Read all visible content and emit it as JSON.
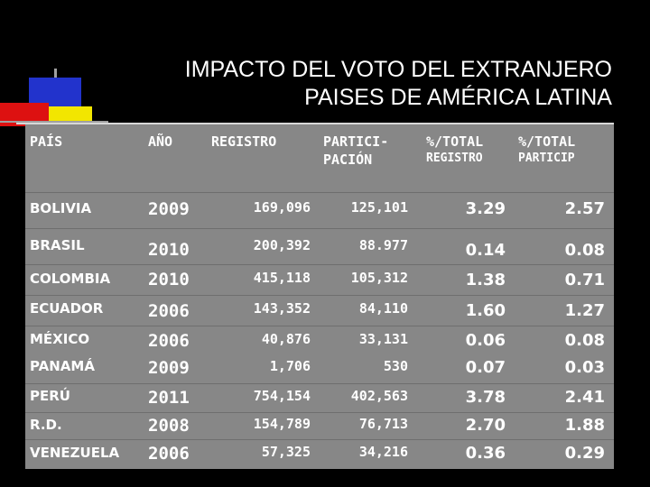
{
  "title": {
    "line1": "IMPACTO DEL VOTO DEL EXTRANJERO",
    "line2": "PAISES DE AMÉRICA LATINA"
  },
  "table": {
    "headers": {
      "country": "PAÍS",
      "year": "AÑO",
      "registro": "REGISTRO",
      "participacion_1": "PARTICI-",
      "participacion_2": "PACIÓN",
      "pct_registro_1": "%/TOTAL",
      "pct_registro_2": "REGISTRO",
      "pct_particip_1": "%/TOTAL",
      "pct_particip_2": "PARTICIP"
    },
    "rows": [
      {
        "country": "BOLIVIA",
        "year": "2009",
        "registro": "169,096",
        "participacion": "125,101",
        "pct_registro": "3.29",
        "pct_particip": "2.57"
      },
      {
        "country": "BRASIL",
        "year": "2010",
        "registro": "200,392",
        "participacion": "88.977",
        "pct_registro": "0.14",
        "pct_particip": "0.08"
      },
      {
        "country": "COLOMBIA",
        "year": "2010",
        "registro": "415,118",
        "participacion": "105,312",
        "pct_registro": "1.38",
        "pct_particip": "0.71"
      },
      {
        "country": "ECUADOR",
        "year": "2006",
        "registro": "143,352",
        "participacion": "84,110",
        "pct_registro": "1.60",
        "pct_particip": "1.27"
      },
      {
        "country": "MÉXICO",
        "year": "2006",
        "registro": "40,876",
        "participacion": "33,131",
        "pct_registro": "0.06",
        "pct_particip": "0.08"
      },
      {
        "country": "PANAMÁ",
        "year": "2009",
        "registro": "1,706",
        "participacion": "530",
        "pct_registro": "0.07",
        "pct_particip": "0.03"
      },
      {
        "country": "PERÚ",
        "year": "2011",
        "registro": "754,154",
        "participacion": "402,563",
        "pct_registro": "3.78",
        "pct_particip": "2.41"
      },
      {
        "country": "R.D.",
        "year": "2008",
        "registro": "154,789",
        "participacion": "76,713",
        "pct_registro": "2.70",
        "pct_particip": "1.88"
      },
      {
        "country": "VENEZUELA",
        "year": "2006",
        "registro": "57,325",
        "participacion": "34,216",
        "pct_registro": "0.36",
        "pct_particip": "0.29"
      }
    ]
  }
}
